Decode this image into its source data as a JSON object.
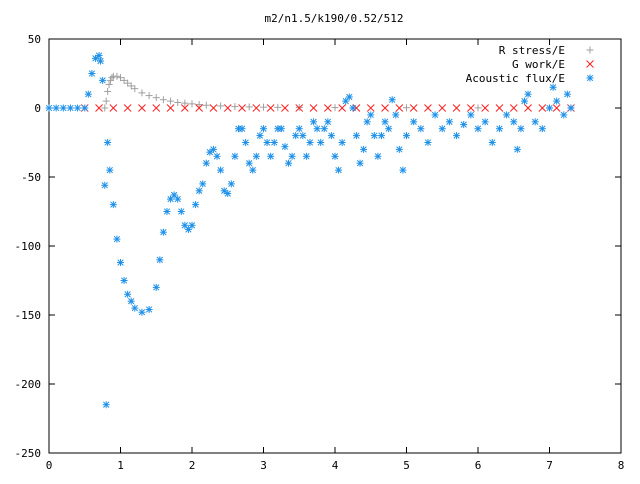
{
  "chart_data": {
    "type": "scatter",
    "title": "m2/n1.5/k190/0.52/512",
    "xlabel": "",
    "ylabel": "",
    "xlim": [
      0,
      8
    ],
    "ylim": [
      -250,
      50
    ],
    "xticks": [
      "0",
      "1",
      "2",
      "3",
      "4",
      "5",
      "6",
      "7",
      "8"
    ],
    "yticks": [
      "50",
      "0",
      "-50",
      "-100",
      "-150",
      "-200",
      "-250"
    ],
    "grid": false,
    "legend_position": "top-right",
    "series": [
      {
        "name": "R stress/E",
        "color": "#a0a0a0",
        "marker": "plus",
        "points": [
          [
            0.78,
            0
          ],
          [
            0.8,
            5
          ],
          [
            0.82,
            12
          ],
          [
            0.84,
            17
          ],
          [
            0.86,
            20
          ],
          [
            0.88,
            22
          ],
          [
            0.9,
            23
          ],
          [
            0.95,
            23
          ],
          [
            1.0,
            22
          ],
          [
            1.05,
            20
          ],
          [
            1.1,
            18
          ],
          [
            1.15,
            16
          ],
          [
            1.2,
            14
          ],
          [
            1.3,
            11
          ],
          [
            1.4,
            9
          ],
          [
            1.5,
            7.5
          ],
          [
            1.6,
            6
          ],
          [
            1.7,
            5
          ],
          [
            1.8,
            4
          ],
          [
            1.9,
            3.5
          ],
          [
            2.0,
            3
          ],
          [
            2.1,
            2.5
          ],
          [
            2.2,
            2
          ],
          [
            2.4,
            1.5
          ],
          [
            2.6,
            1
          ],
          [
            2.8,
            0.8
          ],
          [
            3.0,
            0.6
          ],
          [
            3.2,
            0.5
          ],
          [
            3.5,
            0.4
          ],
          [
            4.0,
            0.3
          ],
          [
            5.0,
            0.2
          ],
          [
            6.0,
            0.1
          ],
          [
            7.0,
            0.1
          ],
          [
            7.3,
            0.1
          ]
        ]
      },
      {
        "name": "G work/E",
        "color": "#ff2020",
        "marker": "cross",
        "points": [
          [
            0.5,
            0
          ],
          [
            0.7,
            0
          ],
          [
            0.9,
            0
          ],
          [
            1.1,
            0
          ],
          [
            1.3,
            0
          ],
          [
            1.5,
            0
          ],
          [
            1.7,
            0
          ],
          [
            1.9,
            0
          ],
          [
            2.1,
            0
          ],
          [
            2.3,
            0
          ],
          [
            2.5,
            0
          ],
          [
            2.7,
            0
          ],
          [
            2.9,
            0
          ],
          [
            3.1,
            0
          ],
          [
            3.3,
            0
          ],
          [
            3.5,
            0
          ],
          [
            3.7,
            0
          ],
          [
            3.9,
            0
          ],
          [
            4.1,
            0
          ],
          [
            4.3,
            0
          ],
          [
            4.5,
            0
          ],
          [
            4.7,
            0
          ],
          [
            4.9,
            0
          ],
          [
            5.1,
            0
          ],
          [
            5.3,
            0
          ],
          [
            5.5,
            0
          ],
          [
            5.7,
            0
          ],
          [
            5.9,
            0
          ],
          [
            6.1,
            0
          ],
          [
            6.3,
            0
          ],
          [
            6.5,
            0
          ],
          [
            6.7,
            0
          ],
          [
            6.9,
            0
          ],
          [
            7.1,
            0
          ],
          [
            7.3,
            0
          ]
        ]
      },
      {
        "name": "Acoustic flux/E",
        "color": "#1e90e8",
        "marker": "star",
        "points": [
          [
            0.0,
            0
          ],
          [
            0.1,
            0
          ],
          [
            0.2,
            0
          ],
          [
            0.3,
            0
          ],
          [
            0.4,
            0
          ],
          [
            0.5,
            0
          ],
          [
            0.55,
            10
          ],
          [
            0.6,
            25
          ],
          [
            0.65,
            36
          ],
          [
            0.7,
            38
          ],
          [
            0.72,
            34
          ],
          [
            0.75,
            20
          ],
          [
            0.78,
            -56
          ],
          [
            0.8,
            -215
          ],
          [
            0.82,
            -25
          ],
          [
            0.85,
            -45
          ],
          [
            0.9,
            -70
          ],
          [
            0.95,
            -95
          ],
          [
            1.0,
            -112
          ],
          [
            1.05,
            -125
          ],
          [
            1.1,
            -135
          ],
          [
            1.15,
            -140
          ],
          [
            1.2,
            -145
          ],
          [
            1.3,
            -148
          ],
          [
            1.4,
            -146
          ],
          [
            1.5,
            -130
          ],
          [
            1.55,
            -110
          ],
          [
            1.6,
            -90
          ],
          [
            1.65,
            -75
          ],
          [
            1.7,
            -66
          ],
          [
            1.75,
            -63
          ],
          [
            1.8,
            -66
          ],
          [
            1.85,
            -75
          ],
          [
            1.9,
            -85
          ],
          [
            1.95,
            -88
          ],
          [
            2.0,
            -85
          ],
          [
            2.05,
            -70
          ],
          [
            2.1,
            -60
          ],
          [
            2.15,
            -55
          ],
          [
            2.2,
            -40
          ],
          [
            2.25,
            -32
          ],
          [
            2.3,
            -30
          ],
          [
            2.35,
            -35
          ],
          [
            2.4,
            -45
          ],
          [
            2.45,
            -60
          ],
          [
            2.5,
            -62
          ],
          [
            2.55,
            -55
          ],
          [
            2.6,
            -35
          ],
          [
            2.65,
            -15
          ],
          [
            2.7,
            -15
          ],
          [
            2.75,
            -25
          ],
          [
            2.8,
            -40
          ],
          [
            2.85,
            -45
          ],
          [
            2.9,
            -35
          ],
          [
            2.95,
            -20
          ],
          [
            3.0,
            -15
          ],
          [
            3.05,
            -25
          ],
          [
            3.1,
            -35
          ],
          [
            3.15,
            -25
          ],
          [
            3.2,
            -15
          ],
          [
            3.25,
            -15
          ],
          [
            3.3,
            -28
          ],
          [
            3.35,
            -40
          ],
          [
            3.4,
            -35
          ],
          [
            3.45,
            -20
          ],
          [
            3.5,
            -15
          ],
          [
            3.55,
            -20
          ],
          [
            3.6,
            -35
          ],
          [
            3.65,
            -25
          ],
          [
            3.7,
            -10
          ],
          [
            3.75,
            -15
          ],
          [
            3.8,
            -25
          ],
          [
            3.85,
            -15
          ],
          [
            3.9,
            -10
          ],
          [
            3.95,
            -20
          ],
          [
            4.0,
            -35
          ],
          [
            4.05,
            -45
          ],
          [
            4.1,
            -25
          ],
          [
            4.15,
            5
          ],
          [
            4.2,
            8
          ],
          [
            4.25,
            0
          ],
          [
            4.3,
            -20
          ],
          [
            4.35,
            -40
          ],
          [
            4.4,
            -30
          ],
          [
            4.45,
            -10
          ],
          [
            4.5,
            -5
          ],
          [
            4.55,
            -20
          ],
          [
            4.6,
            -35
          ],
          [
            4.65,
            -20
          ],
          [
            4.7,
            -10
          ],
          [
            4.75,
            -15
          ],
          [
            4.8,
            6
          ],
          [
            4.85,
            -5
          ],
          [
            4.9,
            -30
          ],
          [
            4.95,
            -45
          ],
          [
            5.0,
            -20
          ],
          [
            5.1,
            -10
          ],
          [
            5.2,
            -15
          ],
          [
            5.3,
            -25
          ],
          [
            5.4,
            -5
          ],
          [
            5.5,
            -15
          ],
          [
            5.6,
            -10
          ],
          [
            5.7,
            -20
          ],
          [
            5.8,
            -12
          ],
          [
            5.9,
            -5
          ],
          [
            6.0,
            -15
          ],
          [
            6.1,
            -10
          ],
          [
            6.2,
            -25
          ],
          [
            6.3,
            -15
          ],
          [
            6.4,
            -5
          ],
          [
            6.5,
            -10
          ],
          [
            6.55,
            -30
          ],
          [
            6.6,
            -15
          ],
          [
            6.65,
            5
          ],
          [
            6.7,
            10
          ],
          [
            6.8,
            -10
          ],
          [
            6.9,
            -15
          ],
          [
            7.0,
            0
          ],
          [
            7.05,
            15
          ],
          [
            7.1,
            5
          ],
          [
            7.2,
            -5
          ],
          [
            7.25,
            10
          ],
          [
            7.3,
            0
          ]
        ]
      }
    ]
  }
}
